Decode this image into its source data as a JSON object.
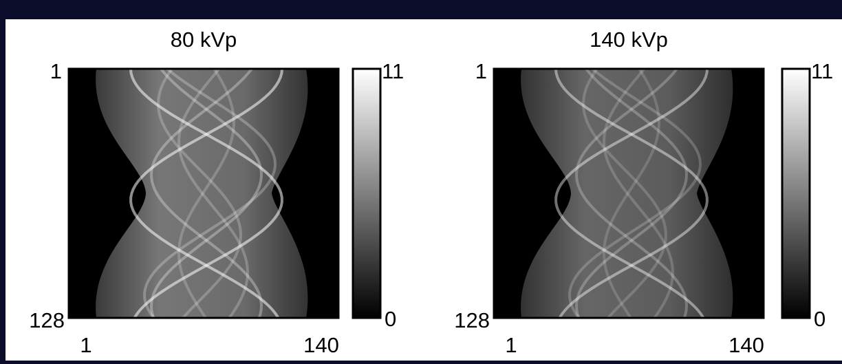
{
  "panels": [
    {
      "title": "80 kVp",
      "y_axis": {
        "top": "1",
        "bottom": "128"
      },
      "x_axis": {
        "left": "1",
        "right": "140"
      },
      "colorbar": {
        "max": "11",
        "min": "0"
      }
    },
    {
      "title": "140 kVp",
      "y_axis": {
        "top": "1",
        "bottom": "128"
      },
      "x_axis": {
        "left": "1",
        "right": "140"
      },
      "colorbar": {
        "max": "11",
        "min": "0"
      }
    }
  ]
}
